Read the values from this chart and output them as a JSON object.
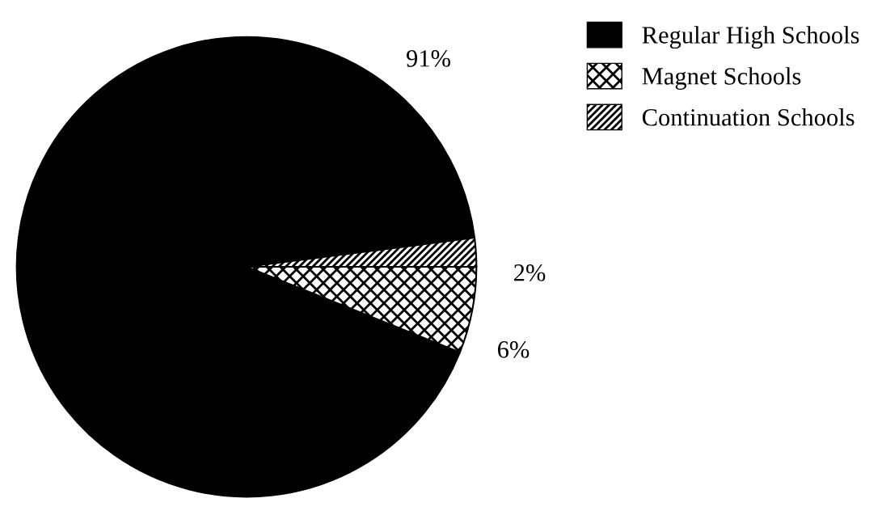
{
  "chart_data": {
    "type": "pie",
    "categories": [
      "Regular High Schools",
      "Magnet Schools",
      "Continuation Schools"
    ],
    "values": [
      91,
      6,
      2
    ],
    "colors": [
      "#000000",
      "#000000",
      "#000000"
    ],
    "value_labels": [
      "91%",
      "6%",
      "2%"
    ],
    "legend": "top right"
  }
}
